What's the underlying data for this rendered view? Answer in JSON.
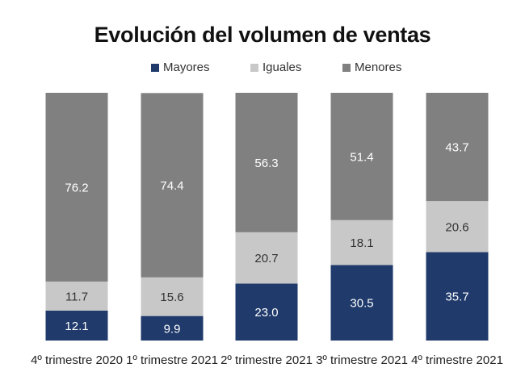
{
  "chart_data": {
    "type": "bar",
    "stacked": true,
    "title": "Evolución del volumen de ventas",
    "xlabel": "",
    "ylabel": "",
    "ylim": [
      0,
      100
    ],
    "grid": false,
    "legend_position": "top-center",
    "categories": [
      "4º trimestre 2020",
      "1º trimestre 2021",
      "2º trimestre 2021",
      "3º trimestre 2021",
      "4º trimestre 2021"
    ],
    "series": [
      {
        "name": "Mayores",
        "color": "#1f3a6b",
        "label_color": "#ffffff",
        "values": [
          12.1,
          9.9,
          23.0,
          30.5,
          35.7
        ],
        "labels": [
          "12.1",
          "9.9",
          "23.0",
          "30.5",
          "35.7"
        ]
      },
      {
        "name": "Iguales",
        "color": "#c8c8c8",
        "label_color": "#333333",
        "values": [
          11.7,
          15.6,
          20.7,
          18.1,
          20.6
        ],
        "labels": [
          "11.7",
          "15.6",
          "20.7",
          "18.1",
          "20.6"
        ]
      },
      {
        "name": "Menores",
        "color": "#808080",
        "label_color": "#ffffff",
        "values": [
          76.2,
          74.4,
          56.3,
          51.4,
          43.7
        ],
        "labels": [
          "76.2",
          "74.4",
          "56.3",
          "51.4",
          "43.7"
        ]
      }
    ]
  }
}
